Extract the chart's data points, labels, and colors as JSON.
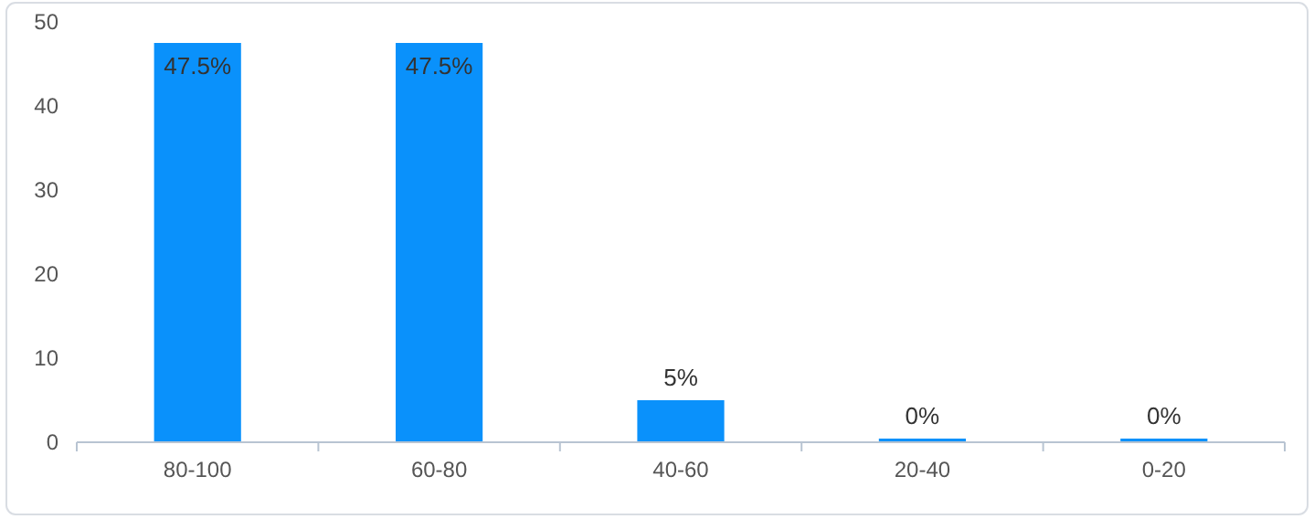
{
  "chart_data": {
    "type": "bar",
    "categories": [
      "80-100",
      "60-80",
      "40-60",
      "20-40",
      "0-20"
    ],
    "values": [
      47.5,
      47.5,
      5,
      0,
      0
    ],
    "value_labels": [
      "47.5%",
      "47.5%",
      "5%",
      "0%",
      "0%"
    ],
    "color": "#0a91fb",
    "ylim": [
      0,
      50
    ],
    "yticks": [
      0,
      10,
      20,
      30,
      40,
      50
    ],
    "grid": false
  }
}
